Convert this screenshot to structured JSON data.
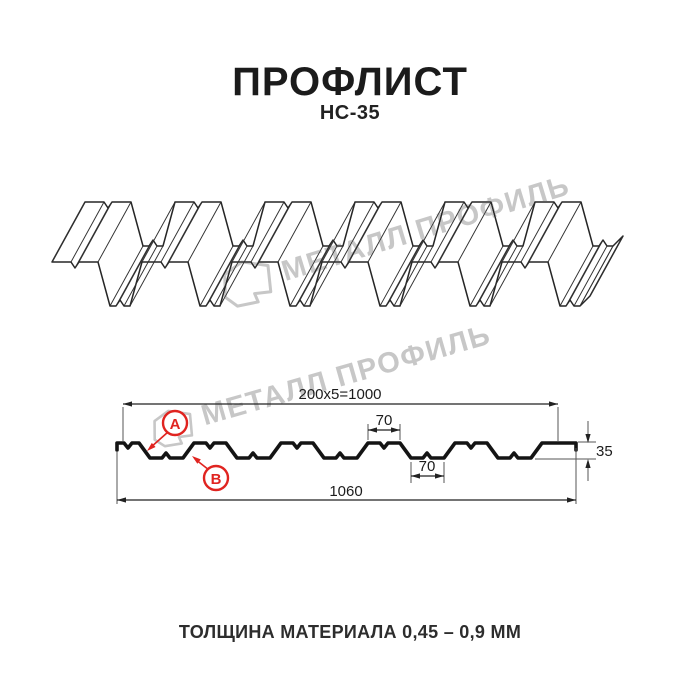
{
  "page": {
    "title": "ПРОФЛИСТ",
    "subtitle": "НС-35",
    "footer": "ТОЛЩИНА МАТЕРИАЛА 0,45 – 0,9 ММ"
  },
  "watermark": {
    "text": "МЕТАЛЛ ПРОФИЛЬ"
  },
  "diagram": {
    "dimensions": {
      "coverage_width": "200x5=1000",
      "crest_width": "70",
      "valley_width": "70",
      "overall_width": "1060",
      "profile_height": "35"
    },
    "labels": {
      "a": "A",
      "b": "B"
    }
  },
  "colors": {
    "accent_red": "#e02420",
    "line_dark": "#1c1c1c",
    "watermark_gray": "#c7c7c7"
  }
}
